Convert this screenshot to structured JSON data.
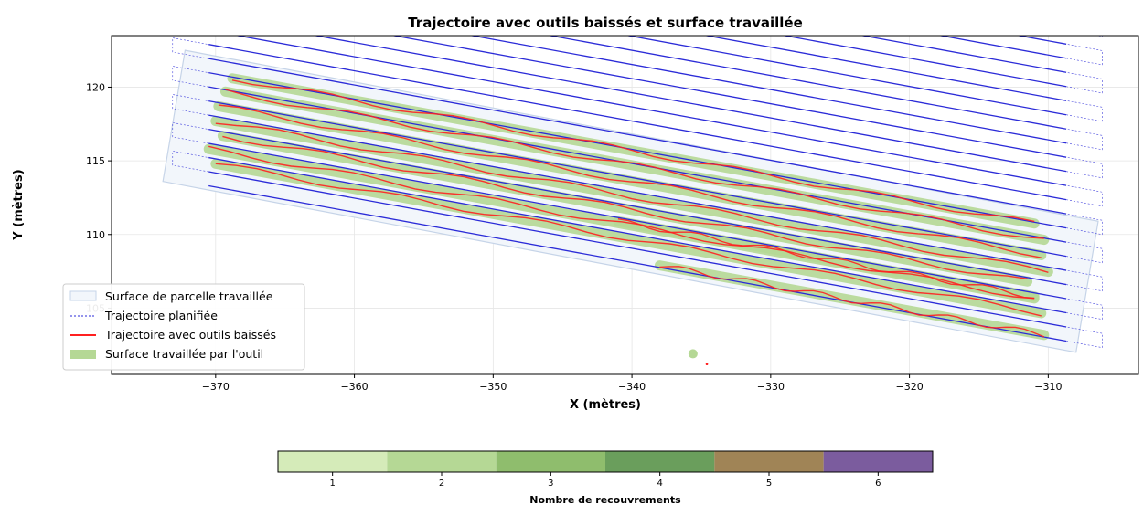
{
  "chart_data": {
    "type": "line",
    "title": "Trajectoire avec outils baissés et surface travaillée",
    "xlabel": "X (mètres)",
    "ylabel": "Y (mètres)",
    "xlim": [
      -377.5,
      -303.5
    ],
    "ylim": [
      100.5,
      123.5
    ],
    "xticks": [
      -370,
      -360,
      -350,
      -340,
      -330,
      -320,
      -310
    ],
    "yticks": [
      105,
      110,
      115,
      120
    ],
    "grid": true,
    "legend_position": "lower-left",
    "legend": [
      {
        "label": "Surface de parcelle travaillée",
        "kind": "patch",
        "color": "#dfe9f5"
      },
      {
        "label": "Trajectoire planifiée",
        "kind": "dashed-line",
        "color": "#2b2bd8"
      },
      {
        "label": "Trajectoire avec outils baissés",
        "kind": "line",
        "color": "#ff2020"
      },
      {
        "label": "Surface travaillée par l'outil",
        "kind": "patch",
        "color": "#b5d895"
      }
    ],
    "parcel_polygon": [
      [
        -373.8,
        113.6
      ],
      [
        -372.2,
        122.5
      ],
      [
        -306.4,
        110.9
      ],
      [
        -308.0,
        102.0
      ]
    ],
    "planned_trajectory": {
      "pass_count": 26,
      "slope": -0.1705,
      "first_pass_start": [
        -370.5,
        113.3
      ],
      "pass_spacing_y": 0.96,
      "x_start": -370.5,
      "x_end": -308.7,
      "headland_offset_left": -2.6,
      "headland_offset_right": 2.6
    },
    "worked_passes": [
      {
        "x_start": -370.0,
        "x_end": -310.5,
        "y_start": 114.8
      },
      {
        "x_start": -370.5,
        "x_end": -311.0,
        "y_start": 115.8
      },
      {
        "x_start": -369.5,
        "x_end": -311.5,
        "y_start": 116.7
      },
      {
        "x_start": -370.0,
        "x_end": -310.0,
        "y_start": 117.7
      },
      {
        "x_start": -369.8,
        "x_end": -310.5,
        "y_start": 118.7
      },
      {
        "x_start": -369.3,
        "x_end": -310.3,
        "y_start": 119.7
      },
      {
        "x_start": -368.8,
        "x_end": -311.0,
        "y_start": 120.6
      },
      {
        "x_start": -338.0,
        "x_end": -310.3,
        "y_start": 107.9
      },
      {
        "x_start": -341.0,
        "x_end": -311.0,
        "y_start": 110.9
      }
    ],
    "stray_points": [
      {
        "x": -335.6,
        "y": 101.9,
        "kind": "worked-surface"
      },
      {
        "x": -334.6,
        "y": 101.2,
        "kind": "tool-down"
      }
    ],
    "colorbar": {
      "label": "Nombre de recouvrements",
      "ticks": [
        1,
        2,
        3,
        4,
        5,
        6
      ],
      "colors": [
        "#d5ebb9",
        "#b5d895",
        "#8fbd6d",
        "#6a9e5c",
        "#a08456",
        "#7b5c9e"
      ]
    }
  }
}
